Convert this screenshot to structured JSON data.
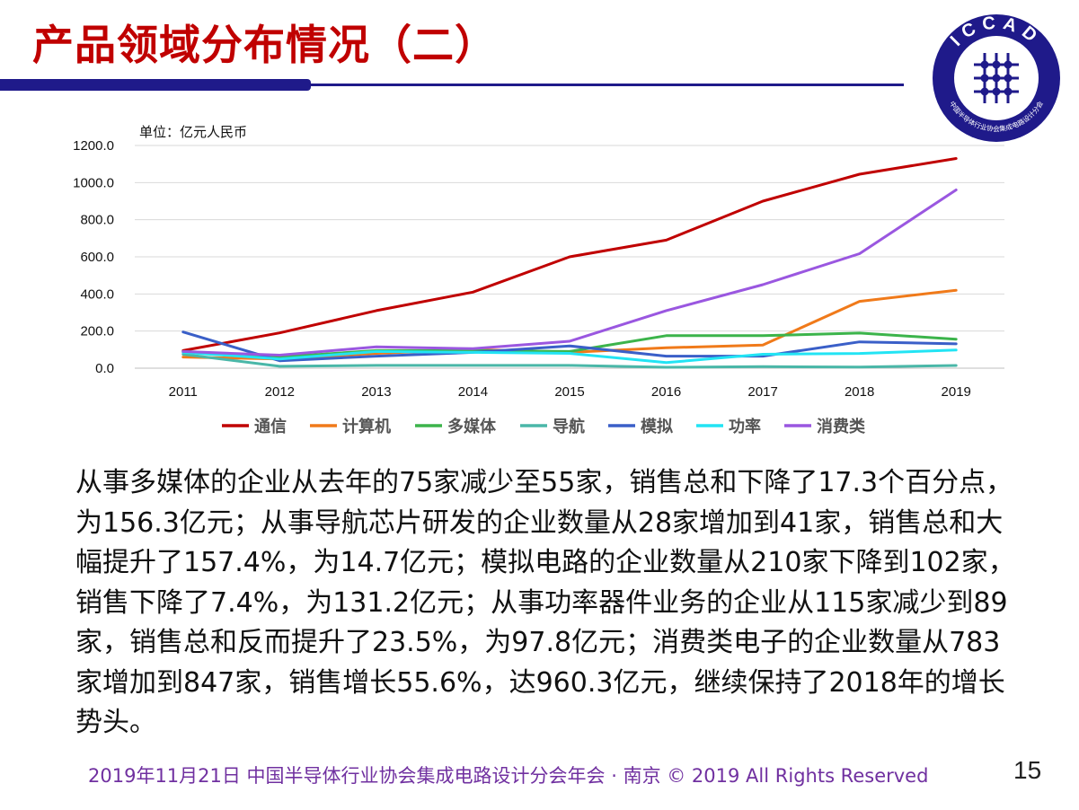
{
  "slide": {
    "title": "产品领域分布情况（二）",
    "paragraph": "从事多媒体的企业从去年的75家减少至55家，销售总和下降了17.3个百分点，为156.3亿元；从事导航芯片研发的企业数量从28家增加到41家，销售总和大幅提升了157.4%，为14.7亿元；模拟电路的企业数量从210家下降到102家，销售下降了7.4%，为131.2亿元；从事功率器件业务的企业从115家减少到89家，销售总和反而提升了23.5%，为97.8亿元；消费类电子的企业数量从783家增加到847家，销售增长55.6%，达960.3亿元，继续保持了2018年的增长势头。",
    "footer": "2019年11月21日 中国半导体行业协会集成电路设计分会年会 · 南京 © 2019 All Rights Reserved",
    "page_number": "15",
    "title_color": "#c00000",
    "accent_color": "#1f1a8a"
  },
  "logo": {
    "ring_text": "ICCAD",
    "sub_text": "中国半导体行业协会集成电路设计分会"
  },
  "chart_data": {
    "type": "line",
    "unit_label": "单位：亿元人民币",
    "x": [
      "2011",
      "2012",
      "2013",
      "2014",
      "2015",
      "2016",
      "2017",
      "2018",
      "2019"
    ],
    "ylim": [
      0,
      1200
    ],
    "yticks": [
      "0.0",
      "200.0",
      "400.0",
      "600.0",
      "800.0",
      "1000.0",
      "1200.0"
    ],
    "grid": true,
    "legend_position": "bottom",
    "series": [
      {
        "name": "通信",
        "color": "#c00000",
        "values": [
          95,
          190,
          310,
          410,
          600,
          690,
          900,
          1045,
          1130
        ]
      },
      {
        "name": "计算机",
        "color": "#f07a1a",
        "values": [
          60,
          50,
          80,
          100,
          85,
          110,
          125,
          360,
          420
        ]
      },
      {
        "name": "多媒体",
        "color": "#3cb44b",
        "values": [
          90,
          60,
          95,
          95,
          90,
          175,
          175,
          189,
          156.3
        ]
      },
      {
        "name": "导航",
        "color": "#4ab7a8",
        "values": [
          75,
          10,
          15,
          15,
          15,
          5,
          8,
          5.7,
          14.7
        ]
      },
      {
        "name": "模拟",
        "color": "#3a5fc8",
        "values": [
          195,
          40,
          65,
          85,
          120,
          65,
          65,
          141.7,
          131.2
        ]
      },
      {
        "name": "功率",
        "color": "#22e4f4",
        "values": [
          85,
          50,
          90,
          85,
          80,
          30,
          75,
          79.2,
          97.8
        ]
      },
      {
        "name": "消费类",
        "color": "#9a57e0",
        "values": [
          90,
          70,
          115,
          105,
          145,
          310,
          450,
          617,
          960.3
        ]
      }
    ]
  }
}
